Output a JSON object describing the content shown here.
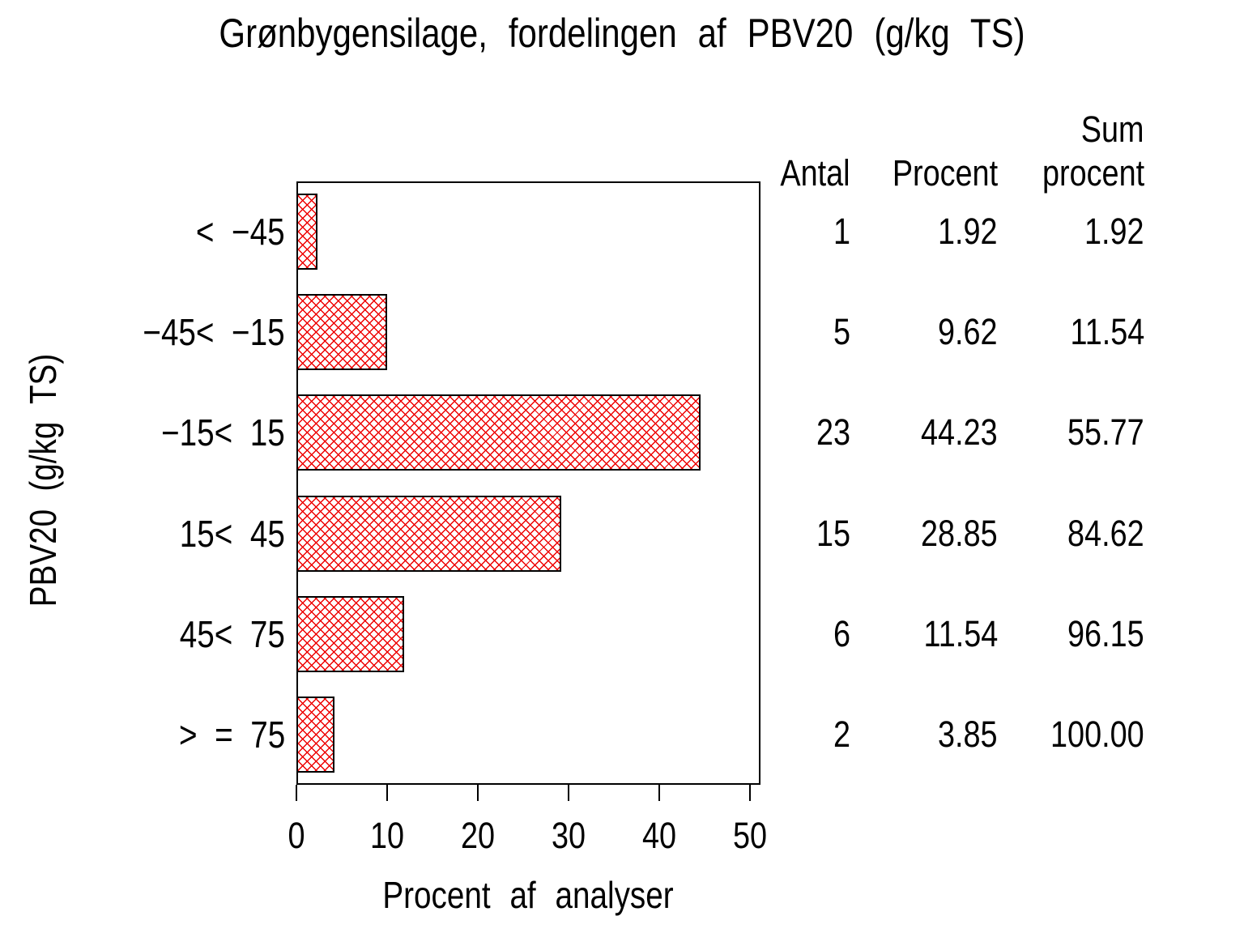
{
  "title": "Grønbygensilage, fordelingen af PBV20 (g/kg TS)",
  "chart_data": {
    "type": "bar",
    "orientation": "horizontal",
    "title": "Grønbygensilage, fordelingen af PBV20 (g/kg TS)",
    "xlabel": "Procent af analyser",
    "ylabel": "PBV20 (g/kg TS)",
    "categories": [
      "< −45",
      "−45< −15",
      "−15< 15",
      "15< 45",
      "45< 75",
      "> = 75"
    ],
    "values": [
      1.92,
      9.62,
      44.23,
      28.85,
      11.54,
      3.85
    ],
    "xlim": [
      0,
      50
    ],
    "xticks": [
      "0",
      "10",
      "20",
      "30",
      "40",
      "50"
    ],
    "grid": false,
    "legend": "none",
    "bar_style": {
      "fill": "crosshatch",
      "hatch_color": "#ee0000",
      "border_color": "#000000",
      "background": "#ffffff"
    },
    "table": {
      "columns": [
        "Antal",
        "Procent",
        "Sum procent"
      ],
      "sum_header_lines": [
        "Sum",
        "procent"
      ],
      "rows": [
        {
          "antal": "1",
          "procent": "1.92",
          "sum_procent": "1.92"
        },
        {
          "antal": "5",
          "procent": "9.62",
          "sum_procent": "11.54"
        },
        {
          "antal": "23",
          "procent": "44.23",
          "sum_procent": "55.77"
        },
        {
          "antal": "15",
          "procent": "28.85",
          "sum_procent": "84.62"
        },
        {
          "antal": "6",
          "procent": "11.54",
          "sum_procent": "96.15"
        },
        {
          "antal": "2",
          "procent": "3.85",
          "sum_procent": "100.00"
        }
      ]
    }
  }
}
